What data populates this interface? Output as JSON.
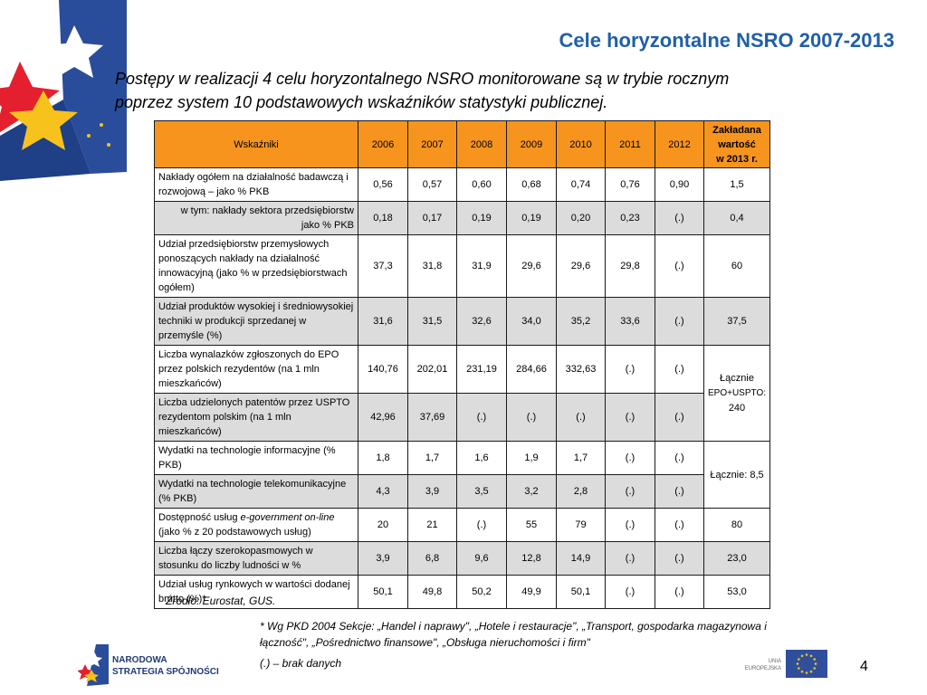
{
  "header": {
    "title": "Cele horyzontalne NSRO 2007-2013",
    "intro_line1": "Postępy w realizacji 4 celu horyzontalnego NSRO monitorowane są w trybie rocznym",
    "intro_line2": "poprzez system 10 podstawowych wskaźników statystyki publicznej."
  },
  "table": {
    "col_indicator": "Wskaźniki",
    "years": [
      "2006",
      "2007",
      "2008",
      "2009",
      "2010",
      "2011",
      "2012"
    ],
    "target_line1": "Zakładana",
    "target_line2": "wartość",
    "target_line3": "w 2013 r.",
    "rows": [
      {
        "label": "Nakłady ogółem na działalność badawczą i rozwojową – jako % PKB",
        "values": [
          "0,56",
          "0,57",
          "0,60",
          "0,68",
          "0,74",
          "0,76",
          "0,90"
        ],
        "target": "1,5"
      },
      {
        "label_line1": "w tym: nakłady sektora przedsiębiorstw",
        "label_line2": "jako % PKB",
        "values": [
          "0,18",
          "0,17",
          "0,19",
          "0,19",
          "0,20",
          "0,23",
          "(.)"
        ],
        "target": "0,4"
      },
      {
        "label": "Udział przedsiębiorstw przemysłowych ponoszących nakłady na działalność innowacyjną (jako % w przedsiębiorstwach ogółem)",
        "values": [
          "37,3",
          "31,8",
          "31,9",
          "29,6",
          "29,6",
          "29,8",
          "(.)"
        ],
        "target": "60"
      },
      {
        "label": "Udział produktów wysokiej i średniowysokiej techniki w produkcji sprzedanej w przemyśle (%)",
        "values": [
          "31,6",
          "31,5",
          "32,6",
          "34,0",
          "35,2",
          "33,6",
          "(.)"
        ],
        "target": "37,5"
      },
      {
        "label": "Liczba wynalazków zgłoszonych do EPO przez polskich rezydentów (na 1 mln mieszkańców)",
        "values": [
          "140,76",
          "202,01",
          "231,19",
          "284,66",
          "332,63",
          "(.)",
          "(.)"
        ],
        "target_line1": "Łącznie",
        "target_line2": "EPO+USPTO:",
        "target_line3": "240"
      },
      {
        "label": "Liczba udzielonych patentów przez USPTO rezydentom polskim (na 1 mln mieszkańców)",
        "values": [
          "42,96",
          "37,69",
          "(.)",
          "(.)",
          "(.)",
          "(.)",
          "(.)"
        ]
      },
      {
        "label": "Wydatki na technologie informacyjne (% PKB)",
        "values": [
          "1,8",
          "1,7",
          "1,6",
          "1,9",
          "1,7",
          "(.)",
          "(.)"
        ],
        "target": "Łącznie: 8,5"
      },
      {
        "label": "Wydatki na technologie telekomunikacyjne (% PKB)",
        "values": [
          "4,3",
          "3,9",
          "3,5",
          "3,2",
          "2,8",
          "(.)",
          "(.)"
        ]
      },
      {
        "label_pre": "Dostępność usług ",
        "label_em": "e-government on-line",
        "label_post": "(jako % z 20 podstawowych usług)",
        "values": [
          "20",
          "21",
          "(.)",
          "55",
          "79",
          "(.)",
          "(.)"
        ],
        "target": "80"
      },
      {
        "label": "Liczba łączy szerokopasmowych w stosunku do liczby ludności w %",
        "values": [
          "3,9",
          "6,8",
          "9,6",
          "12,8",
          "14,9",
          "(.)",
          "(.)"
        ],
        "target": "23,0"
      },
      {
        "label": "Udział usług rynkowych w wartości dodanej brutto (%)*",
        "values": [
          "50,1",
          "49,8",
          "50,2",
          "49,9",
          "50,1",
          "(.)",
          "(.)"
        ],
        "target": "53,0"
      }
    ]
  },
  "footer": {
    "source": "Źródło: Eurostat, GUS.",
    "footnote_1": "* Wg PKD 2004 Sekcje: „Handel i naprawy\", „Hotele i restauracje\", „Transport, gospodarka magazynowa i łączność\", „Pośrednictwo finansowe\", „Obsługa nieruchomości i firm\"",
    "footnote_2": "(.) – brak danych",
    "logo_line1": "NARODOWA",
    "logo_line2": "STRATEGIA SPÓJNOŚCI",
    "eu_line1": "UNIA",
    "eu_line2": "EUROPEJSKA",
    "page_number": "4"
  },
  "colors": {
    "title_blue": "#1f5fa8",
    "header_orange": "#f7941d",
    "shade_gray": "#dcdcdc",
    "star_red": "#e4202e",
    "star_yellow": "#f7c21c",
    "emblem_blue": "#2a4d9b",
    "eu_blue": "#2f4f9d"
  },
  "icons": [
    "polska-star-emblem",
    "narodowa-strategia-spojnosci-logo",
    "eu-flag"
  ]
}
